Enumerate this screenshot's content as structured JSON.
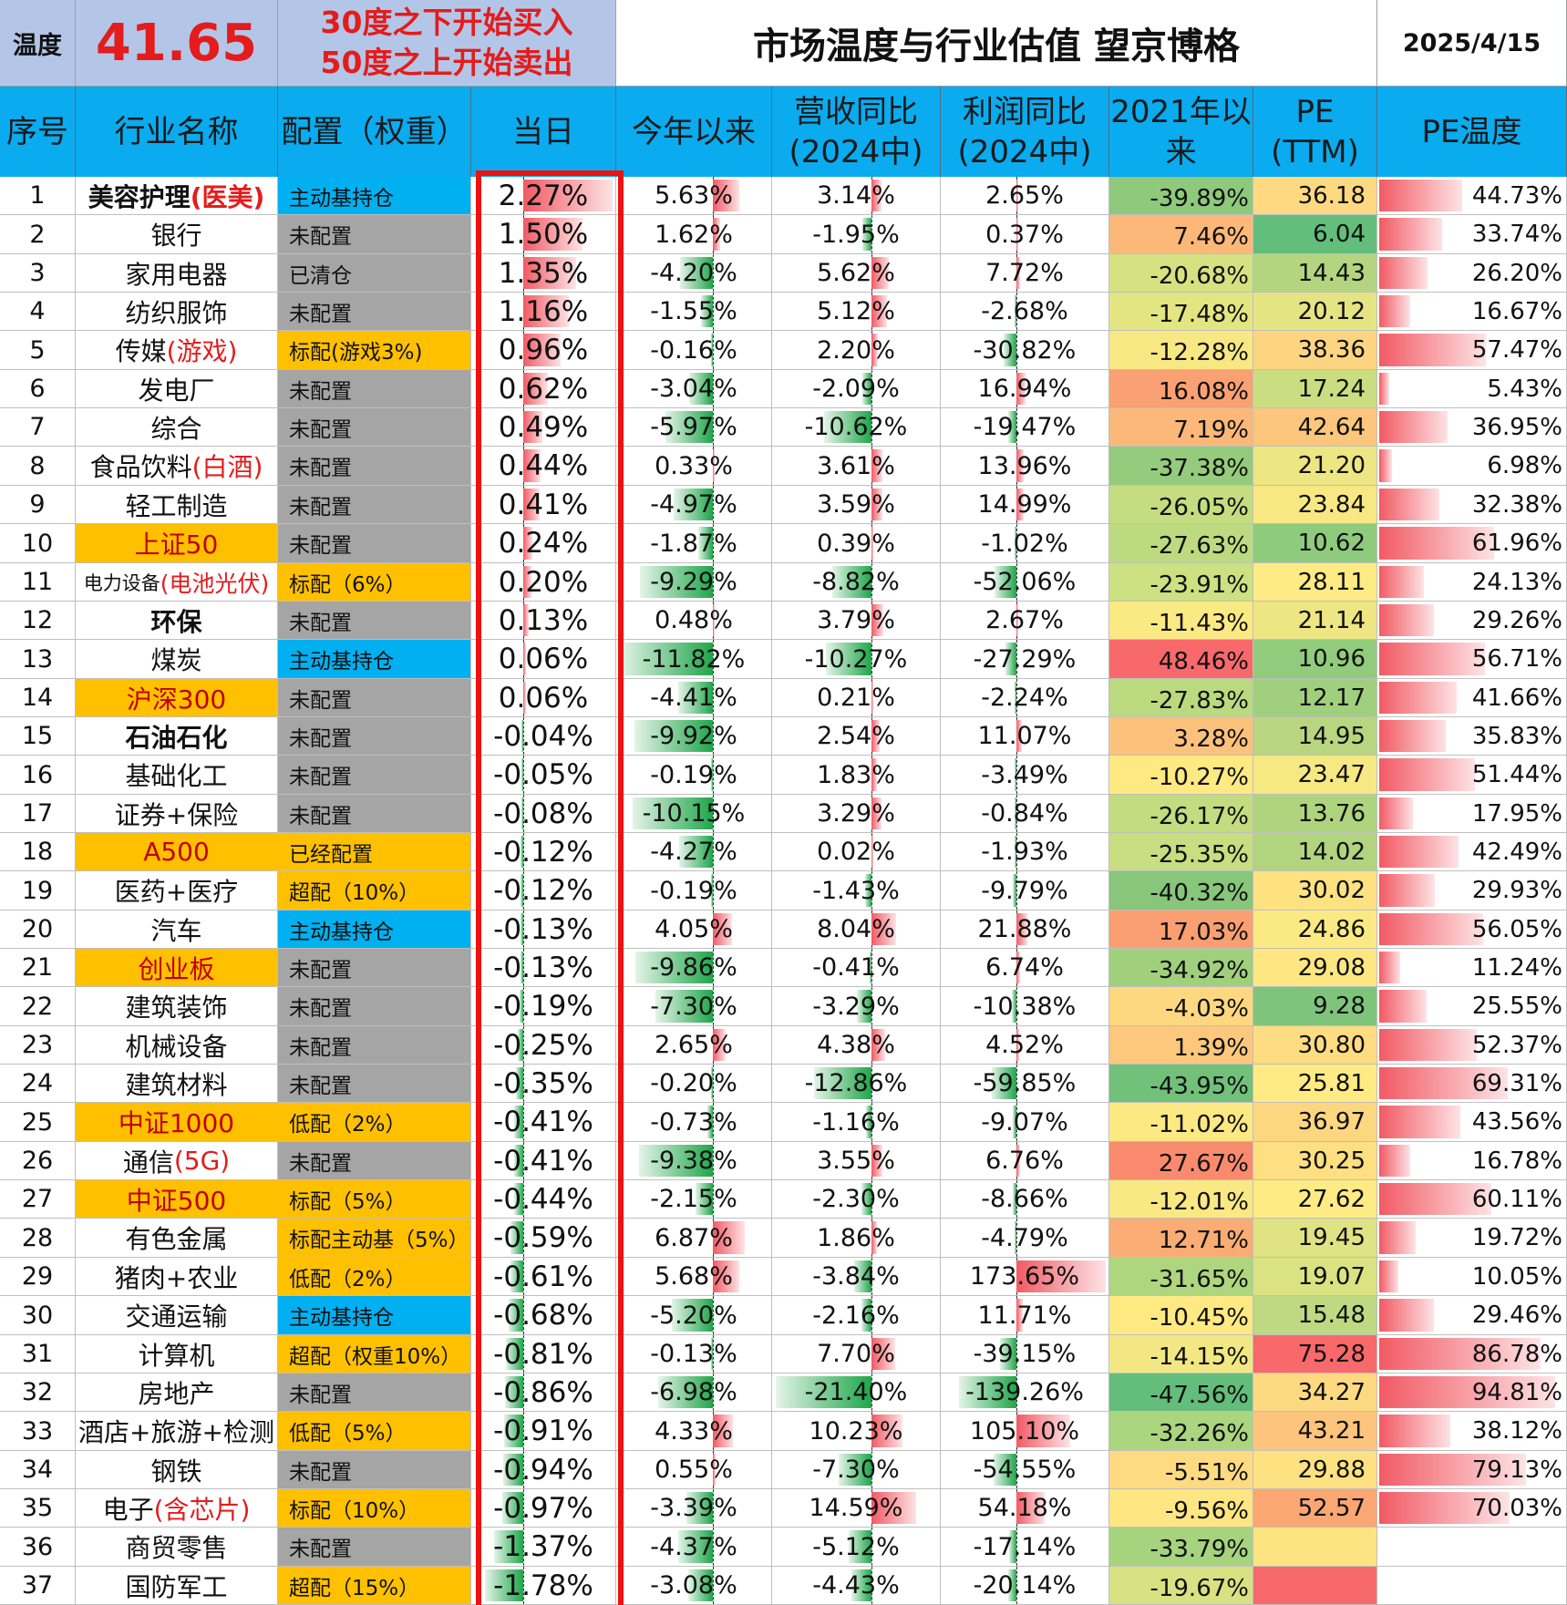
{
  "header": {
    "temp_label": "温度",
    "temp_value": "41.65",
    "rule_line1": "30度之下开始买入",
    "rule_line2": "50度之上开始卖出",
    "title": "市场温度与行业估值 望京博格",
    "date": "2025/4/15"
  },
  "columns": [
    "序号",
    "行业名称",
    "配置（权重）",
    "当日",
    "今年以来",
    "营收同比\n(2024中)",
    "利润同比\n(2024中)",
    "2021年以\n来",
    "PE\n(TTM)",
    "PE温度"
  ],
  "colors": {
    "header_bg": "#0aabef",
    "top_bg": "#b4c6e7",
    "alloc_gray": "#a5a5a5",
    "alloc_orange": "#ffc000",
    "alloc_blue": "#00b0f0",
    "highlight_border": "#ee1111",
    "red_text": "#e41c1c",
    "bar_red": "#f25a64",
    "bar_green": "#1fa64a"
  },
  "rows": [
    {
      "no": "1",
      "name": "美容护理",
      "name_suffix": "(医美)",
      "name_style": "bold",
      "alloc": "主动基持仓",
      "alloc_style": "blue",
      "day": "2.27%",
      "ytd": "5.63%",
      "rev": "3.14%",
      "profit": "2.65%",
      "since2021": "-39.89%",
      "pe": "36.18",
      "pe_temp": "44.73%",
      "since_color": "#8fc97b",
      "pe_color": "#fed981"
    },
    {
      "no": "2",
      "name": "银行",
      "name_suffix": "",
      "name_style": "plain",
      "alloc": "未配置",
      "alloc_style": "gray",
      "day": "1.50%",
      "ytd": "1.62%",
      "rev": "-1.95%",
      "profit": "0.37%",
      "since2021": "7.46%",
      "pe": "6.04",
      "pe_temp": "33.74%",
      "since_color": "#fbb878",
      "pe_color": "#63be7b"
    },
    {
      "no": "3",
      "name": "家用电器",
      "name_suffix": "",
      "name_style": "plain",
      "alloc": "已清仓",
      "alloc_style": "gray",
      "day": "1.35%",
      "ytd": "-4.20%",
      "rev": "5.62%",
      "profit": "7.72%",
      "since2021": "-20.68%",
      "pe": "14.43",
      "pe_temp": "26.20%",
      "since_color": "#d5e282",
      "pe_color": "#b4d57f"
    },
    {
      "no": "4",
      "name": "纺织服饰",
      "name_suffix": "",
      "name_style": "plain",
      "alloc": "未配置",
      "alloc_style": "gray",
      "day": "1.16%",
      "ytd": "-1.55%",
      "rev": "5.12%",
      "profit": "-2.68%",
      "since2021": "-17.48%",
      "pe": "20.12",
      "pe_temp": "16.67%",
      "since_color": "#e3e583",
      "pe_color": "#e5e483"
    },
    {
      "no": "5",
      "name": "传媒",
      "name_suffix": "(游戏)",
      "name_style": "plain",
      "alloc": "标配(游戏3%)",
      "alloc_style": "orange",
      "day": "0.96%",
      "ytd": "-0.16%",
      "rev": "2.20%",
      "profit": "-30.82%",
      "since2021": "-12.28%",
      "pe": "38.36",
      "pe_temp": "57.47%",
      "since_color": "#f8e883",
      "pe_color": "#fdd580"
    },
    {
      "no": "6",
      "name": "发电厂",
      "name_suffix": "",
      "name_style": "plain",
      "alloc": "未配置",
      "alloc_style": "gray",
      "day": "0.62%",
      "ytd": "-3.04%",
      "rev": "-2.09%",
      "profit": "16.94%",
      "since2021": "16.08%",
      "pe": "17.24",
      "pe_temp": "5.43%",
      "since_color": "#f9a172",
      "pe_color": "#cbdd81"
    },
    {
      "no": "7",
      "name": "综合",
      "name_suffix": "",
      "name_style": "plain",
      "alloc": "未配置",
      "alloc_style": "gray",
      "day": "0.49%",
      "ytd": "-5.97%",
      "rev": "-10.62%",
      "profit": "-19.47%",
      "since2021": "7.19%",
      "pe": "42.64",
      "pe_temp": "36.95%",
      "since_color": "#fbb878",
      "pe_color": "#fcc67c"
    },
    {
      "no": "8",
      "name": "食品饮料",
      "name_suffix": "(白酒)",
      "name_style": "plain",
      "alloc": "未配置",
      "alloc_style": "gray",
      "day": "0.44%",
      "ytd": "0.33%",
      "rev": "3.61%",
      "profit": "13.96%",
      "since2021": "-37.38%",
      "pe": "21.20",
      "pe_temp": "6.98%",
      "since_color": "#95cb7c",
      "pe_color": "#ede683"
    },
    {
      "no": "9",
      "name": "轻工制造",
      "name_suffix": "",
      "name_style": "plain",
      "alloc": "未配置",
      "alloc_style": "gray",
      "day": "0.41%",
      "ytd": "-4.97%",
      "rev": "3.59%",
      "profit": "14.99%",
      "since2021": "-26.05%",
      "pe": "23.84",
      "pe_temp": "32.38%",
      "since_color": "#c4dd80",
      "pe_color": "#f8e883"
    },
    {
      "no": "10",
      "name": "上证50",
      "name_suffix": "",
      "name_style": "index",
      "alloc": "未配置",
      "alloc_style": "gray",
      "day": "0.24%",
      "ytd": "-1.87%",
      "rev": "0.39%",
      "profit": "-1.02%",
      "since2021": "-27.63%",
      "pe": "10.62",
      "pe_temp": "61.96%",
      "since_color": "#bcdb80",
      "pe_color": "#8ecb7c"
    },
    {
      "no": "11",
      "name": "电力设备",
      "name_suffix": "(电池光伏)",
      "name_style": "small",
      "alloc": "标配（6%）",
      "alloc_style": "orange",
      "day": "0.20%",
      "ytd": "-9.29%",
      "rev": "-8.82%",
      "profit": "-52.06%",
      "since2021": "-23.91%",
      "pe": "28.11",
      "pe_temp": "24.13%",
      "since_color": "#cde082",
      "pe_color": "#feeb84"
    },
    {
      "no": "12",
      "name": "环保",
      "name_suffix": "",
      "name_style": "bold",
      "alloc": "未配置",
      "alloc_style": "gray",
      "day": "0.13%",
      "ytd": "0.48%",
      "rev": "3.79%",
      "profit": "2.67%",
      "since2021": "-11.43%",
      "pe": "21.14",
      "pe_temp": "29.26%",
      "since_color": "#fbe983",
      "pe_color": "#ede683"
    },
    {
      "no": "13",
      "name": "煤炭",
      "name_suffix": "",
      "name_style": "plain",
      "alloc": "主动基持仓",
      "alloc_style": "blue",
      "day": "0.06%",
      "ytd": "-11.82%",
      "rev": "-10.27%",
      "profit": "-27.29%",
      "since2021": "48.46%",
      "pe": "10.96",
      "pe_temp": "56.71%",
      "since_color": "#f8696b",
      "pe_color": "#91cc7c"
    },
    {
      "no": "14",
      "name": "沪深300",
      "name_suffix": "",
      "name_style": "index",
      "alloc": "未配置",
      "alloc_style": "gray",
      "day": "0.06%",
      "ytd": "-4.41%",
      "rev": "0.21%",
      "profit": "-2.24%",
      "since2021": "-27.83%",
      "pe": "12.17",
      "pe_temp": "41.66%",
      "since_color": "#bbda80",
      "pe_color": "#a0d07d"
    },
    {
      "no": "15",
      "name": "石油石化",
      "name_suffix": "",
      "name_style": "bold",
      "alloc": "未配置",
      "alloc_style": "gray",
      "day": "-0.04%",
      "ytd": "-9.92%",
      "rev": "2.54%",
      "profit": "11.07%",
      "since2021": "3.28%",
      "pe": "14.95",
      "pe_temp": "35.83%",
      "since_color": "#fcc27b",
      "pe_color": "#b8d680"
    },
    {
      "no": "16",
      "name": "基础化工",
      "name_suffix": "",
      "name_style": "plain",
      "alloc": "未配置",
      "alloc_style": "gray",
      "day": "-0.05%",
      "ytd": "-0.19%",
      "rev": "1.83%",
      "profit": "-3.49%",
      "since2021": "-10.27%",
      "pe": "23.47",
      "pe_temp": "51.44%",
      "since_color": "#fee983",
      "pe_color": "#f6e883"
    },
    {
      "no": "17",
      "name": "证券+保险",
      "name_suffix": "",
      "name_style": "plain",
      "alloc": "未配置",
      "alloc_style": "gray",
      "day": "-0.08%",
      "ytd": "-10.15%",
      "rev": "3.29%",
      "profit": "-0.84%",
      "since2021": "-26.17%",
      "pe": "13.76",
      "pe_temp": "17.95%",
      "since_color": "#c3dc80",
      "pe_color": "#aed47e"
    },
    {
      "no": "18",
      "name": "A500",
      "name_suffix": "",
      "name_style": "index",
      "alloc": "已经配置",
      "alloc_style": "orange",
      "day": "-0.12%",
      "ytd": "-4.27%",
      "rev": "0.02%",
      "profit": "-1.93%",
      "since2021": "-25.35%",
      "pe": "14.02",
      "pe_temp": "42.49%",
      "since_color": "#c7de81",
      "pe_color": "#b1d47f"
    },
    {
      "no": "19",
      "name": "医药+医疗",
      "name_suffix": "",
      "name_style": "plain",
      "alloc": "超配（10%）",
      "alloc_style": "orange",
      "day": "-0.12%",
      "ytd": "-0.19%",
      "rev": "-1.43%",
      "profit": "-9.79%",
      "since2021": "-40.32%",
      "pe": "30.02",
      "pe_temp": "29.93%",
      "since_color": "#87c67b",
      "pe_color": "#fee282"
    },
    {
      "no": "20",
      "name": "汽车",
      "name_suffix": "",
      "name_style": "plain",
      "alloc": "主动基持仓",
      "alloc_style": "blue",
      "day": "-0.13%",
      "ytd": "4.05%",
      "rev": "8.04%",
      "profit": "21.88%",
      "since2021": "17.03%",
      "pe": "24.86",
      "pe_temp": "56.05%",
      "since_color": "#f99f71",
      "pe_color": "#fbea84"
    },
    {
      "no": "21",
      "name": "创业板",
      "name_suffix": "",
      "name_style": "index",
      "alloc": "未配置",
      "alloc_style": "gray",
      "day": "-0.13%",
      "ytd": "-9.86%",
      "rev": "-0.41%",
      "profit": "6.74%",
      "since2021": "-34.92%",
      "pe": "29.08",
      "pe_temp": "11.24%",
      "since_color": "#a1d07d",
      "pe_color": "#fee782"
    },
    {
      "no": "22",
      "name": "建筑装饰",
      "name_suffix": "",
      "name_style": "plain",
      "alloc": "未配置",
      "alloc_style": "gray",
      "day": "-0.19%",
      "ytd": "-7.30%",
      "rev": "-3.29%",
      "profit": "-10.38%",
      "since2021": "-4.03%",
      "pe": "9.28",
      "pe_temp": "25.55%",
      "since_color": "#fed880",
      "pe_color": "#7ec57b"
    },
    {
      "no": "23",
      "name": "机械设备",
      "name_suffix": "",
      "name_style": "plain",
      "alloc": "未配置",
      "alloc_style": "gray",
      "day": "-0.25%",
      "ytd": "2.65%",
      "rev": "4.38%",
      "profit": "4.52%",
      "since2021": "1.39%",
      "pe": "30.80",
      "pe_temp": "52.37%",
      "since_color": "#fdc87c",
      "pe_color": "#fedc81"
    },
    {
      "no": "24",
      "name": "建筑材料",
      "name_suffix": "",
      "name_style": "plain",
      "alloc": "未配置",
      "alloc_style": "gray",
      "day": "-0.35%",
      "ytd": "-0.20%",
      "rev": "-12.86%",
      "profit": "-59.85%",
      "since2021": "-43.95%",
      "pe": "25.81",
      "pe_temp": "69.31%",
      "since_color": "#71c17b",
      "pe_color": "#feeb84"
    },
    {
      "no": "25",
      "name": "中证1000",
      "name_suffix": "",
      "name_style": "index",
      "alloc": "低配（2%）",
      "alloc_style": "orange",
      "day": "-0.41%",
      "ytd": "-0.73%",
      "rev": "-1.16%",
      "profit": "-9.07%",
      "since2021": "-11.02%",
      "pe": "36.97",
      "pe_temp": "43.56%",
      "since_color": "#fde983",
      "pe_color": "#fdd680"
    },
    {
      "no": "26",
      "name": "通信",
      "name_suffix": "(5G)",
      "name_style": "plain",
      "alloc": "未配置",
      "alloc_style": "gray",
      "day": "-0.41%",
      "ytd": "-9.38%",
      "rev": "3.55%",
      "profit": "6.76%",
      "since2021": "27.67%",
      "pe": "30.25",
      "pe_temp": "16.78%",
      "since_color": "#fa8a6e",
      "pe_color": "#fedf81"
    },
    {
      "no": "27",
      "name": "中证500",
      "name_suffix": "",
      "name_style": "index",
      "alloc": "标配（5%）",
      "alloc_style": "orange",
      "day": "-0.44%",
      "ytd": "-2.15%",
      "rev": "-2.30%",
      "profit": "-8.66%",
      "since2021": "-12.01%",
      "pe": "27.62",
      "pe_temp": "60.11%",
      "since_color": "#f9e883",
      "pe_color": "#feeb84"
    },
    {
      "no": "28",
      "name": "有色金属",
      "name_suffix": "",
      "name_style": "plain",
      "alloc": "标配主动基（5%）",
      "alloc_style": "orange",
      "day": "-0.59%",
      "ytd": "6.87%",
      "rev": "1.86%",
      "profit": "-4.79%",
      "since2021": "12.71%",
      "pe": "19.45",
      "pe_temp": "19.72%",
      "since_color": "#faac75",
      "pe_color": "#dfe383"
    },
    {
      "no": "29",
      "name": "猪肉+农业",
      "name_suffix": "",
      "name_style": "plain",
      "alloc": "低配（2%）",
      "alloc_style": "orange",
      "day": "-0.61%",
      "ytd": "5.68%",
      "rev": "-3.84%",
      "profit": "173.65%",
      "since2021": "-31.65%",
      "pe": "19.07",
      "pe_temp": "10.05%",
      "since_color": "#add67e",
      "pe_color": "#dbe282"
    },
    {
      "no": "30",
      "name": "交通运输",
      "name_suffix": "",
      "name_style": "plain",
      "alloc": "主动基持仓",
      "alloc_style": "blue",
      "day": "-0.68%",
      "ytd": "-5.20%",
      "rev": "-2.16%",
      "profit": "11.71%",
      "since2021": "-10.45%",
      "pe": "15.48",
      "pe_temp": "29.46%",
      "since_color": "#fee983",
      "pe_color": "#bed981"
    },
    {
      "no": "31",
      "name": "计算机",
      "name_suffix": "",
      "name_style": "plain",
      "alloc": "超配（权重10%）",
      "alloc_style": "orange",
      "day": "-0.81%",
      "ytd": "-0.13%",
      "rev": "7.70%",
      "profit": "-39.15%",
      "since2021": "-14.15%",
      "pe": "75.28",
      "pe_temp": "86.78%",
      "since_color": "#f2e783",
      "pe_color": "#f8696b"
    },
    {
      "no": "32",
      "name": "房地产",
      "name_suffix": "",
      "name_style": "plain",
      "alloc": "未配置",
      "alloc_style": "gray",
      "day": "-0.86%",
      "ytd": "-6.98%",
      "rev": "-21.40%",
      "profit": "-139.26%",
      "since2021": "-47.56%",
      "pe": "34.27",
      "pe_temp": "94.81%",
      "since_color": "#63be7b",
      "pe_color": "#fdd981"
    },
    {
      "no": "33",
      "name": "酒店+旅游+检测",
      "name_suffix": "",
      "name_style": "plain",
      "alloc": "低配（5%）",
      "alloc_style": "orange",
      "day": "-0.91%",
      "ytd": "4.33%",
      "rev": "10.23%",
      "profit": "105.10%",
      "since2021": "-32.26%",
      "pe": "43.21",
      "pe_temp": "38.12%",
      "since_color": "#abd57e",
      "pe_color": "#fcc47c"
    },
    {
      "no": "34",
      "name": "钢铁",
      "name_suffix": "",
      "name_style": "plain",
      "alloc": "未配置",
      "alloc_style": "gray",
      "day": "-0.94%",
      "ytd": "0.55%",
      "rev": "-7.30%",
      "profit": "-54.55%",
      "since2021": "-5.51%",
      "pe": "29.88",
      "pe_temp": "79.13%",
      "since_color": "#fedb81",
      "pe_color": "#fee282"
    },
    {
      "no": "35",
      "name": "电子",
      "name_suffix": "(含芯片)",
      "name_style": "plain",
      "alloc": "标配（10%）",
      "alloc_style": "orange",
      "day": "-0.97%",
      "ytd": "-3.39%",
      "rev": "14.59%",
      "profit": "54.18%",
      "since2021": "-9.56%",
      "pe": "52.57",
      "pe_temp": "70.03%",
      "since_color": "#fee682",
      "pe_color": "#faa774"
    },
    {
      "no": "36",
      "name": "商贸零售",
      "name_suffix": "",
      "name_style": "plain",
      "alloc": "未配置",
      "alloc_style": "gray",
      "day": "-1.37%",
      "ytd": "-4.37%",
      "rev": "-5.12%",
      "profit": "-17.14%",
      "since2021": "-33.79%",
      "pe": "",
      "pe_temp": "",
      "since_color": "#a6d37d",
      "pe_color": "#fde482"
    },
    {
      "no": "37",
      "name": "国防军工",
      "name_suffix": "",
      "name_style": "plain",
      "alloc": "超配（15%）",
      "alloc_style": "orange",
      "day": "-1.78%",
      "ytd": "-3.08%",
      "rev": "-4.43%",
      "profit": "-20.14%",
      "since2021": "-19.67%",
      "pe": "",
      "pe_temp": "",
      "since_color": "#d9e182",
      "pe_color": "#f8696b"
    }
  ]
}
